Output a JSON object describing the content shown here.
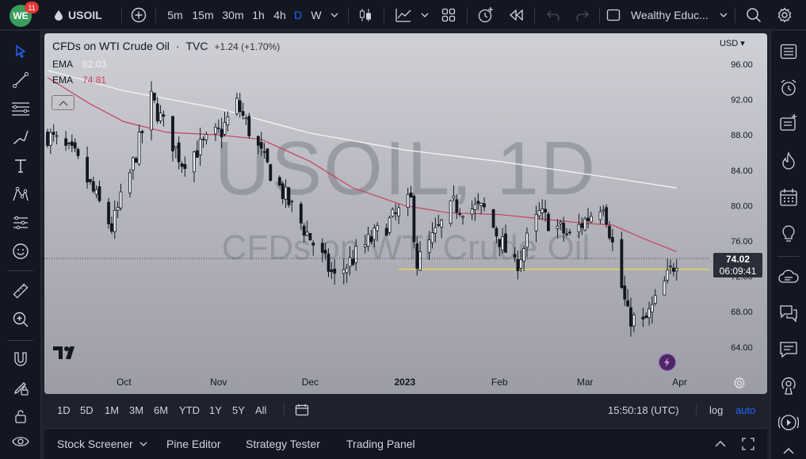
{
  "header": {
    "logo_text": "WE",
    "notification_count": "11",
    "symbol": "USOIL",
    "intervals": [
      "5m",
      "15m",
      "30m",
      "1h",
      "4h",
      "D",
      "W"
    ],
    "active_interval": "D",
    "layout_name": "Wealthy Educ..."
  },
  "chart": {
    "title": "CFDs on WTI Crude Oil",
    "separator": "·",
    "source": "TVC",
    "change": "+1.24 (+1.70%)",
    "ema_label_1": "EMA",
    "ema_value_1": "82.03",
    "ema_label_2": "EMA",
    "ema_value_2": "74.81",
    "watermark_symbol": "USOIL, 1D",
    "watermark_description": "CFDs on WTI Crude Oil",
    "currency": "USD",
    "last_price": "74.02",
    "countdown": "06:09:41",
    "colors": {
      "ema_200": "#f2f2f2",
      "ema_50": "#c8415a",
      "support_line": "#f0e040",
      "candle": "#131722"
    }
  },
  "chart_data": {
    "type": "candlestick",
    "title": "CFDs on WTI Crude Oil · TVC",
    "y_tick_labels": [
      "96.00",
      "92.00",
      "88.00",
      "84.00",
      "80.00",
      "76.00",
      "72.00",
      "68.00",
      "64.00"
    ],
    "ylim": [
      61.5,
      98.0
    ],
    "x_tick_labels": [
      "Oct",
      "Nov",
      "Dec",
      "2023",
      "Feb",
      "Mar",
      "Apr"
    ],
    "x_range": [
      "2022-09-06",
      "2023-04-12"
    ],
    "last_price": 74.02,
    "support_level": 72.8,
    "support_start": "2022-12-30",
    "ema_slow": {
      "name": "EMA",
      "last_value": 82.03,
      "points": [
        [
          "2022-09-06",
          95.3
        ],
        [
          "2022-10-01",
          93.0
        ],
        [
          "2022-11-01",
          91.0
        ],
        [
          "2022-12-01",
          88.2
        ],
        [
          "2023-01-01",
          86.3
        ],
        [
          "2023-02-01",
          85.0
        ],
        [
          "2023-03-01",
          83.6
        ],
        [
          "2023-03-31",
          82.0
        ]
      ]
    },
    "ema_fast": {
      "name": "EMA",
      "last_value": 74.81,
      "points": [
        [
          "2022-09-06",
          94.5
        ],
        [
          "2022-09-20",
          91.5
        ],
        [
          "2022-10-01",
          89.5
        ],
        [
          "2022-10-15",
          88.3
        ],
        [
          "2022-11-01",
          88.0
        ],
        [
          "2022-11-15",
          87.5
        ],
        [
          "2022-12-01",
          85.0
        ],
        [
          "2022-12-15",
          82.0
        ],
        [
          "2023-01-01",
          80.0
        ],
        [
          "2023-01-15",
          79.2
        ],
        [
          "2023-02-01",
          79.0
        ],
        [
          "2023-02-15",
          78.5
        ],
        [
          "2023-03-01",
          78.0
        ],
        [
          "2023-03-10",
          77.8
        ],
        [
          "2023-03-20",
          76.3
        ],
        [
          "2023-03-31",
          74.8
        ]
      ]
    },
    "close_path": [
      [
        "2022-09-06",
        88.0
      ],
      [
        "2022-09-15",
        85.5
      ],
      [
        "2022-09-27",
        77.5
      ],
      [
        "2022-10-03",
        83.5
      ],
      [
        "2022-10-10",
        92.0
      ],
      [
        "2022-10-20",
        85.0
      ],
      [
        "2022-11-02",
        88.5
      ],
      [
        "2022-11-07",
        91.5
      ],
      [
        "2022-11-16",
        85.0
      ],
      [
        "2022-11-28",
        78.0
      ],
      [
        "2022-12-09",
        71.8
      ],
      [
        "2022-12-19",
        75.5
      ],
      [
        "2023-01-03",
        80.5
      ],
      [
        "2023-01-05",
        73.5
      ],
      [
        "2023-01-17",
        80.0
      ],
      [
        "2023-01-27",
        79.5
      ],
      [
        "2023-02-06",
        73.0
      ],
      [
        "2023-02-14",
        79.0
      ],
      [
        "2023-02-24",
        76.5
      ],
      [
        "2023-03-07",
        80.5
      ],
      [
        "2023-03-15",
        67.5
      ],
      [
        "2023-03-20",
        66.5
      ],
      [
        "2023-03-24",
        69.0
      ],
      [
        "2023-03-31",
        74.0
      ]
    ]
  },
  "range": {
    "buttons": [
      "1D",
      "5D",
      "1M",
      "3M",
      "6M",
      "YTD",
      "1Y",
      "5Y",
      "All"
    ],
    "time": "15:50:18 (UTC)",
    "log": "log",
    "auto": "auto"
  },
  "bottom": {
    "tabs": [
      "Stock Screener",
      "Pine Editor",
      "Strategy Tester",
      "Trading Panel"
    ]
  },
  "icons": {
    "left": [
      "cursor-icon",
      "trend-line-icon",
      "fib-icon",
      "brush-icon",
      "text-icon",
      "pattern-icon",
      "forecast-icon",
      "emoji-icon",
      "ruler-icon",
      "zoom-icon",
      "magnet-icon",
      "lock-draw-icon",
      "lock-icon",
      "eye-icon"
    ],
    "right": [
      "watchlist-icon",
      "alarm-icon",
      "news-icon",
      "hotlist-icon",
      "calendar-icon",
      "ideas-icon",
      "cloud-chat-icon",
      "chat-icon",
      "messages-icon",
      "broadcast-icon",
      "stream-icon"
    ]
  }
}
